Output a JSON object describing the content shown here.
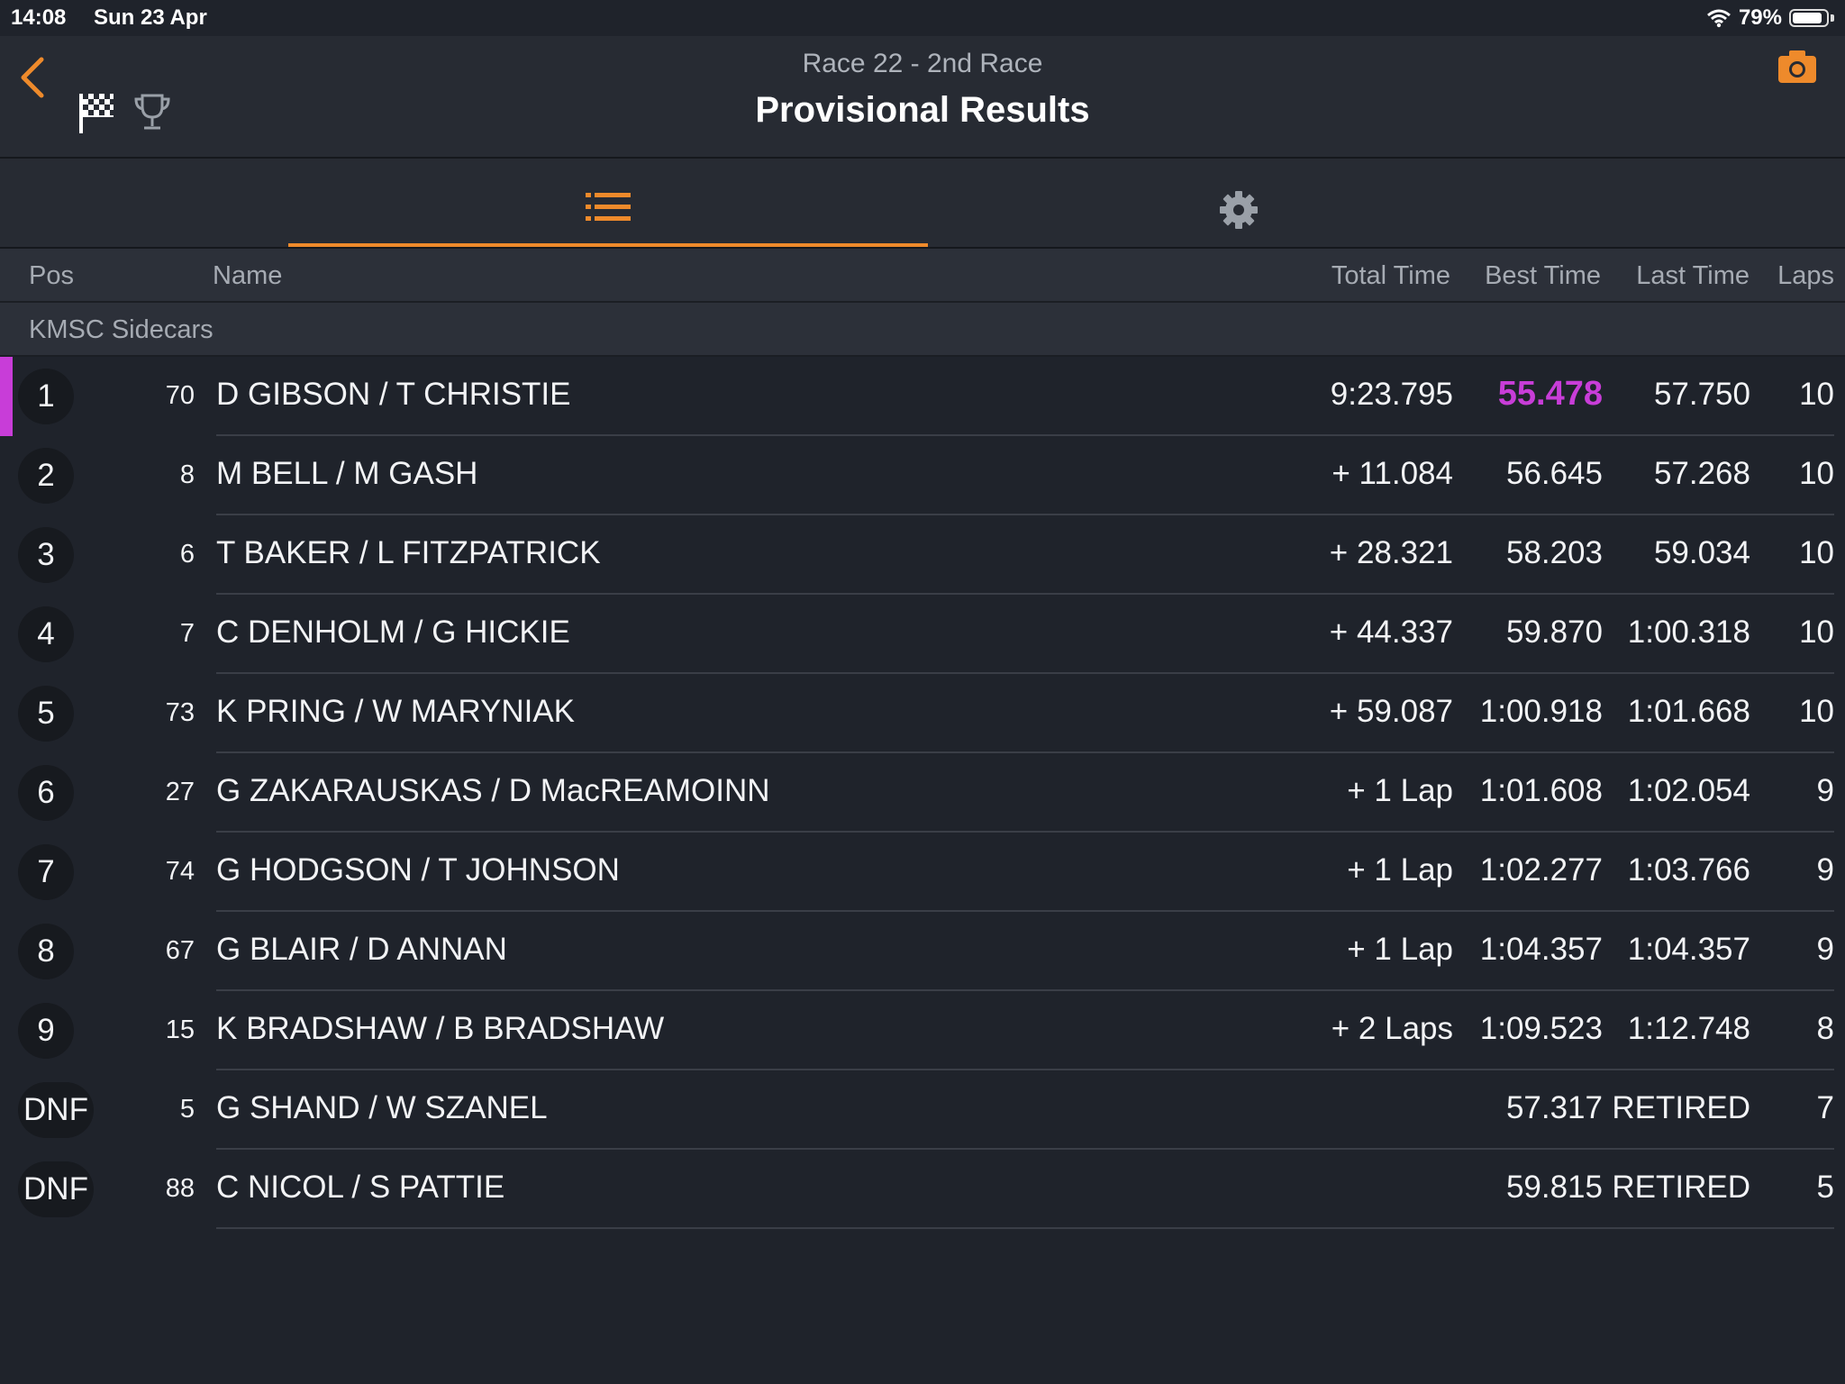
{
  "status": {
    "time": "14:08",
    "date": "Sun 23 Apr",
    "battery": "79%",
    "battery_level": 0.79
  },
  "nav": {
    "subtitle": "Race 22 - 2nd Race",
    "title": "Provisional Results"
  },
  "columns": {
    "pos": "Pos",
    "name": "Name",
    "total": "Total Time",
    "best": "Best Time",
    "last": "Last Time",
    "laps": "Laps"
  },
  "group": "KMSC Sidecars",
  "accent_color": "#ee8a2b",
  "fastest_color": "#c83dd8",
  "rows": [
    {
      "pos": "1",
      "num": "70",
      "name": "D GIBSON / T CHRISTIE",
      "total": "9:23.795",
      "best": "55.478",
      "last": "57.750",
      "laps": "10",
      "fastest": true
    },
    {
      "pos": "2",
      "num": "8",
      "name": "M BELL / M GASH",
      "total": "+ 11.084",
      "best": "56.645",
      "last": "57.268",
      "laps": "10"
    },
    {
      "pos": "3",
      "num": "6",
      "name": "T BAKER / L FITZPATRICK",
      "total": "+ 28.321",
      "best": "58.203",
      "last": "59.034",
      "laps": "10"
    },
    {
      "pos": "4",
      "num": "7",
      "name": "C DENHOLM / G HICKIE",
      "total": "+ 44.337",
      "best": "59.870",
      "last": "1:00.318",
      "laps": "10"
    },
    {
      "pos": "5",
      "num": "73",
      "name": "K PRING / W MARYNIAK",
      "total": "+ 59.087",
      "best": "1:00.918",
      "last": "1:01.668",
      "laps": "10"
    },
    {
      "pos": "6",
      "num": "27",
      "name": "G ZAKARAUSKAS / D MacREAMOINN",
      "total": "+ 1 Lap",
      "best": "1:01.608",
      "last": "1:02.054",
      "laps": "9"
    },
    {
      "pos": "7",
      "num": "74",
      "name": "G HODGSON / T JOHNSON",
      "total": "+ 1 Lap",
      "best": "1:02.277",
      "last": "1:03.766",
      "laps": "9"
    },
    {
      "pos": "8",
      "num": "67",
      "name": "G BLAIR / D ANNAN",
      "total": "+ 1 Lap",
      "best": "1:04.357",
      "last": "1:04.357",
      "laps": "9"
    },
    {
      "pos": "9",
      "num": "15",
      "name": "K BRADSHAW / B BRADSHAW",
      "total": "+ 2 Laps",
      "best": "1:09.523",
      "last": "1:12.748",
      "laps": "8"
    },
    {
      "pos": "DNF",
      "num": "5",
      "name": "G SHAND / W SZANEL",
      "total": "",
      "best": "57.317",
      "last": "RETIRED",
      "laps": "7"
    },
    {
      "pos": "DNF",
      "num": "88",
      "name": "C NICOL / S PATTIE",
      "total": "",
      "best": "59.815",
      "last": "RETIRED",
      "laps": "5"
    }
  ]
}
